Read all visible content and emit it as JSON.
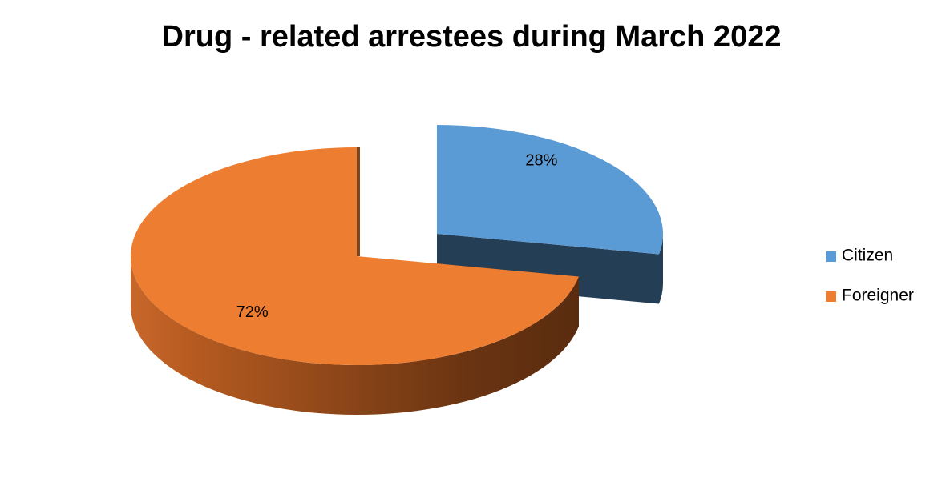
{
  "chart_data": {
    "type": "pie",
    "title": "Drug - related arrestees during March 2022",
    "categories": [
      "Citizen",
      "Foreigner"
    ],
    "values": [
      28,
      72
    ],
    "value_labels": [
      "28%",
      "72%"
    ],
    "colors": [
      "#5b9bd5",
      "#ed7d31"
    ],
    "legend": "right"
  }
}
